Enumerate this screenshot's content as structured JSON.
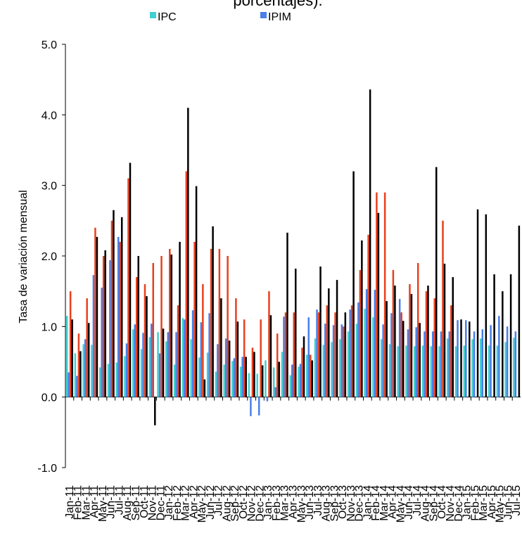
{
  "chart_data": {
    "type": "bar",
    "title": "porcentajes).",
    "y_label": "Tasa de variación mensual",
    "categories": [
      "Jan-11",
      "Feb-11",
      "Mar-11",
      "Apr-11",
      "May-11",
      "Jun-11",
      "Jul-11",
      "Aug-11",
      "Sep-11",
      "Oct-11",
      "Nov-11",
      "Dec-11",
      "Jan-12",
      "Feb-12",
      "Mar-12",
      "Apr-12",
      "May-12",
      "Jun-12",
      "Jul-12",
      "Aug-12",
      "Sep-12",
      "Oct-12",
      "Nov-12",
      "Dec-12",
      "Jan-13",
      "Feb-13",
      "Mar-13",
      "Apr-13",
      "May-13",
      "Jun-13",
      "Jul-13",
      "Aug-13",
      "Sep-13",
      "Oct-13",
      "Nov-13",
      "Dec-13",
      "Jan-14",
      "Feb-14",
      "Mar-14",
      "Apr-14",
      "May-14",
      "Jun-14",
      "Jul-14",
      "Aug-14",
      "Sep-14",
      "Oct-14",
      "Nov-14",
      "Dec-14",
      "Jan-15",
      "Feb-15",
      "Mar-15",
      "Apr-15",
      "May-15",
      "Jun-15",
      "Jul-15"
    ],
    "series": [
      {
        "name": "IPC",
        "color": "#3fd0d0",
        "values": [
          1.15,
          0.62,
          0.75,
          0.74,
          0.42,
          0.47,
          0.49,
          0.58,
          0.96,
          0.68,
          0.85,
          0.92,
          0.79,
          0.46,
          1.12,
          0.82,
          0.56,
          0.63,
          0.36,
          0.46,
          0.51,
          0.43,
          0.34,
          0.33,
          0.52,
          0.42,
          0.64,
          0.31,
          0.43,
          0.6,
          0.83,
          0.74,
          0.78,
          0.82,
          0.93,
          1.04,
          1.25,
          1.13,
          0.82,
          0.75,
          0.72,
          0.73,
          0.72,
          0.73,
          0.72,
          0.72,
          0.83,
          0.72,
          0.73,
          0.82,
          0.83,
          0.73,
          0.73,
          0.78,
          0.84
        ]
      },
      {
        "name": "IPIM",
        "color": "#4a7ee8",
        "values": [
          0.35,
          0.3,
          0.82,
          1.73,
          1.55,
          1.94,
          2.27,
          0.76,
          1.03,
          0.91,
          1.04,
          0.62,
          0.92,
          0.92,
          1.1,
          1.23,
          1.06,
          1.19,
          0.75,
          0.83,
          0.55,
          0.57,
          -0.27,
          -0.26,
          -0.06,
          0.14,
          1.14,
          0.46,
          0.47,
          1.13,
          1.24,
          1.04,
          1.02,
          1.03,
          1.24,
          1.34,
          1.53,
          1.52,
          1.03,
          1.19,
          1.39,
          0.96,
          0.99,
          0.93,
          0.93,
          0.93,
          0.93,
          1.09,
          1.09,
          0.93,
          0.96,
          1.02,
          1.15,
          1.0,
          0.93
        ]
      },
      {
        "color": "#e8401c",
        "values": [
          1.5,
          0.9,
          1.4,
          2.4,
          2.0,
          2.5,
          2.2,
          3.1,
          1.7,
          1.6,
          1.9,
          2.0,
          2.1,
          1.3,
          3.2,
          2.2,
          1.6,
          2.1,
          2.1,
          2.0,
          1.4,
          1.1,
          0.7,
          1.1,
          1.5,
          0.9,
          1.2,
          1.2,
          0.7,
          0.6,
          1.2,
          1.3,
          1.2,
          1.0,
          1.3,
          1.8,
          2.3,
          2.9,
          2.9,
          1.8,
          1.2,
          1.6,
          1.9,
          1.5,
          1.4,
          2.5,
          1.3,
          null,
          null,
          null,
          null,
          null,
          null,
          null,
          null
        ]
      },
      {
        "color": "#000000",
        "values": [
          1.1,
          0.65,
          1.05,
          2.27,
          2.08,
          2.65,
          2.55,
          3.32,
          2.0,
          1.43,
          -0.4,
          0.97,
          2.02,
          2.2,
          4.1,
          2.99,
          0.25,
          2.42,
          1.4,
          0.8,
          1.07,
          0.57,
          0.64,
          0.45,
          1.16,
          0.5,
          2.33,
          1.82,
          0.86,
          0.52,
          1.85,
          1.54,
          1.66,
          1.2,
          3.2,
          2.22,
          4.36,
          2.61,
          1.36,
          1.58,
          1.08,
          1.46,
          1.05,
          1.58,
          3.26,
          1.89,
          1.7,
          1.1,
          1.07,
          2.66,
          2.59,
          1.74,
          1.5,
          1.74,
          2.43
        ]
      }
    ],
    "ylim": [
      -1,
      5
    ],
    "yticks": [
      {
        "value": -1,
        "label": "-1.0"
      },
      {
        "value": 0,
        "label": "0.0"
      },
      {
        "value": 1,
        "label": "1.0"
      },
      {
        "value": 2,
        "label": "2.0"
      },
      {
        "value": 3,
        "label": "3.0"
      },
      {
        "value": 4,
        "label": "4.0"
      },
      {
        "value": 5,
        "label": "5.0"
      }
    ]
  }
}
